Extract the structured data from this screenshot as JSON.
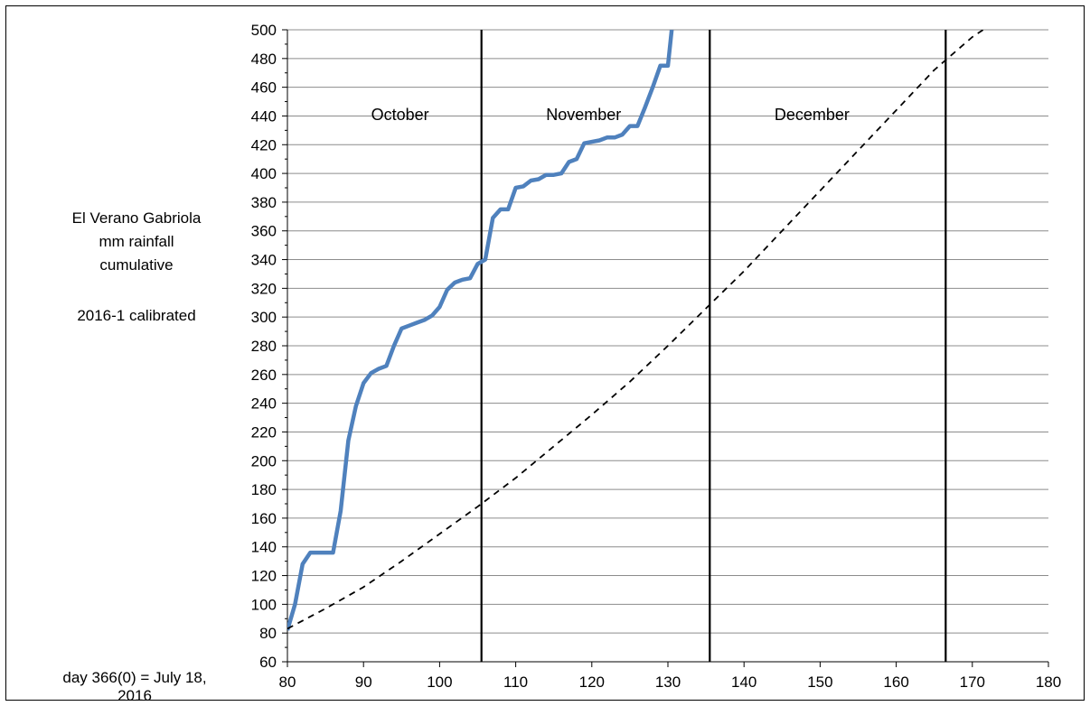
{
  "chart_data": {
    "type": "line",
    "ylabel_lines": [
      "El Verano Gabriola",
      "mm rainfall",
      "cumulative",
      "",
      "2016-1 calibrated"
    ],
    "note": [
      "day 366(0) = July 18,",
      "2016"
    ],
    "xlim": [
      80,
      180
    ],
    "ylim": [
      60,
      500
    ],
    "x_ticks": [
      80,
      90,
      100,
      110,
      120,
      130,
      140,
      150,
      160,
      170,
      180
    ],
    "y_ticks": [
      60,
      80,
      100,
      120,
      140,
      160,
      180,
      200,
      220,
      240,
      260,
      280,
      300,
      320,
      340,
      360,
      380,
      400,
      420,
      440,
      460,
      480,
      500
    ],
    "grid": {
      "horizontal": true,
      "vertical": false
    },
    "month_dividers": [
      105.5,
      135.5,
      166.5
    ],
    "month_labels": [
      {
        "text": "October",
        "x": 91
      },
      {
        "text": "November",
        "x": 114
      },
      {
        "text": "December",
        "x": 144
      }
    ],
    "series": [
      {
        "color": "#4f81bd",
        "style": "solid",
        "points": [
          [
            80,
            82
          ],
          [
            81,
            100
          ],
          [
            82,
            128
          ],
          [
            83,
            136
          ],
          [
            84,
            136
          ],
          [
            85,
            136
          ],
          [
            86,
            136
          ],
          [
            87,
            165
          ],
          [
            88,
            214
          ],
          [
            89,
            238
          ],
          [
            90,
            254
          ],
          [
            91,
            261
          ],
          [
            92,
            264
          ],
          [
            93,
            266
          ],
          [
            94,
            280
          ],
          [
            95,
            292
          ],
          [
            96,
            294
          ],
          [
            97,
            296
          ],
          [
            98,
            298
          ],
          [
            99,
            301
          ],
          [
            100,
            307
          ],
          [
            101,
            319
          ],
          [
            102,
            324
          ],
          [
            103,
            326
          ],
          [
            104,
            327
          ],
          [
            105,
            337
          ],
          [
            106,
            340
          ],
          [
            107,
            369
          ],
          [
            108,
            375
          ],
          [
            109,
            375
          ],
          [
            110,
            390
          ],
          [
            111,
            391
          ],
          [
            112,
            395
          ],
          [
            113,
            396
          ],
          [
            114,
            399
          ],
          [
            115,
            399
          ],
          [
            116,
            400
          ],
          [
            117,
            408
          ],
          [
            118,
            410
          ],
          [
            119,
            421
          ],
          [
            120,
            422
          ],
          [
            121,
            423
          ],
          [
            122,
            425
          ],
          [
            123,
            425
          ],
          [
            124,
            427
          ],
          [
            125,
            433
          ],
          [
            126,
            433
          ],
          [
            127,
            446
          ],
          [
            128,
            460
          ],
          [
            129,
            475
          ],
          [
            130,
            475
          ],
          [
            130.5,
            500
          ]
        ]
      },
      {
        "color": "#000000",
        "style": "dashed",
        "points": [
          [
            80,
            83
          ],
          [
            85,
            97
          ],
          [
            90,
            112
          ],
          [
            95,
            130
          ],
          [
            100,
            149
          ],
          [
            105,
            168
          ],
          [
            110,
            188
          ],
          [
            115,
            210
          ],
          [
            120,
            232
          ],
          [
            125,
            255
          ],
          [
            130,
            280
          ],
          [
            135,
            306
          ],
          [
            140,
            332
          ],
          [
            145,
            360
          ],
          [
            150,
            388
          ],
          [
            155,
            416
          ],
          [
            160,
            444
          ],
          [
            165,
            472
          ],
          [
            170,
            495
          ],
          [
            172,
            502
          ]
        ]
      }
    ]
  }
}
